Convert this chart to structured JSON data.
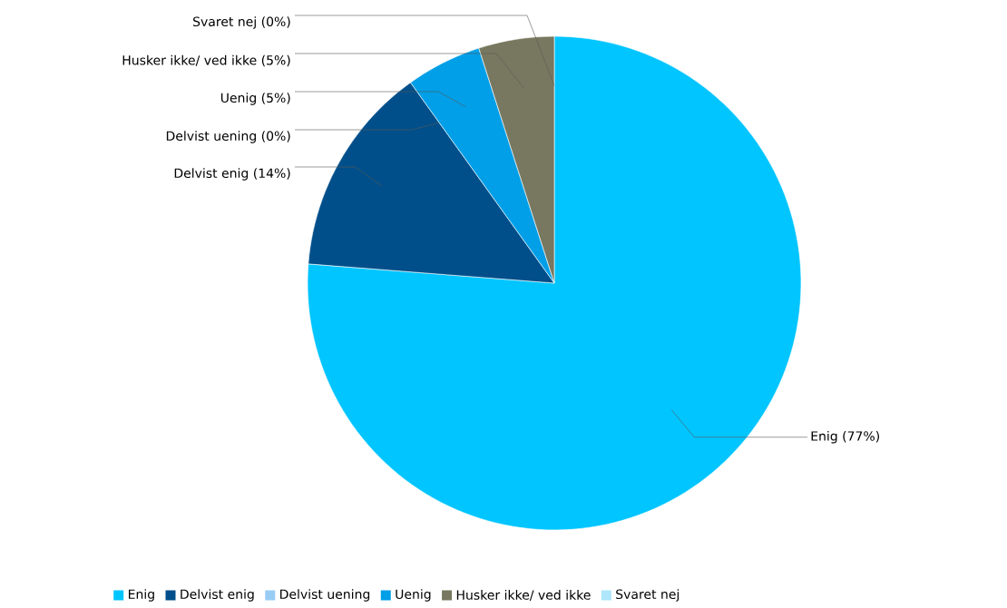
{
  "chart_data": {
    "type": "pie",
    "categories": [
      "Enig",
      "Delvist enig",
      "Delvist uening",
      "Uenig",
      "Husker ikke/ ved ikke",
      "Svaret nej"
    ],
    "values": [
      77,
      14,
      0,
      5,
      5,
      0
    ],
    "colors": [
      "#00c5ff",
      "#004f8a",
      "#99ccf5",
      "#009fe8",
      "#787860",
      "#aee6fb"
    ],
    "value_labels": [
      "Enig (77%)",
      "Delvist enig (14%)",
      "Delvist uening (0%)",
      "Uenig (5%)",
      "Husker ikke/ ved ikke (5%)",
      "Svaret nej (0%)"
    ],
    "legend": "bottom"
  }
}
